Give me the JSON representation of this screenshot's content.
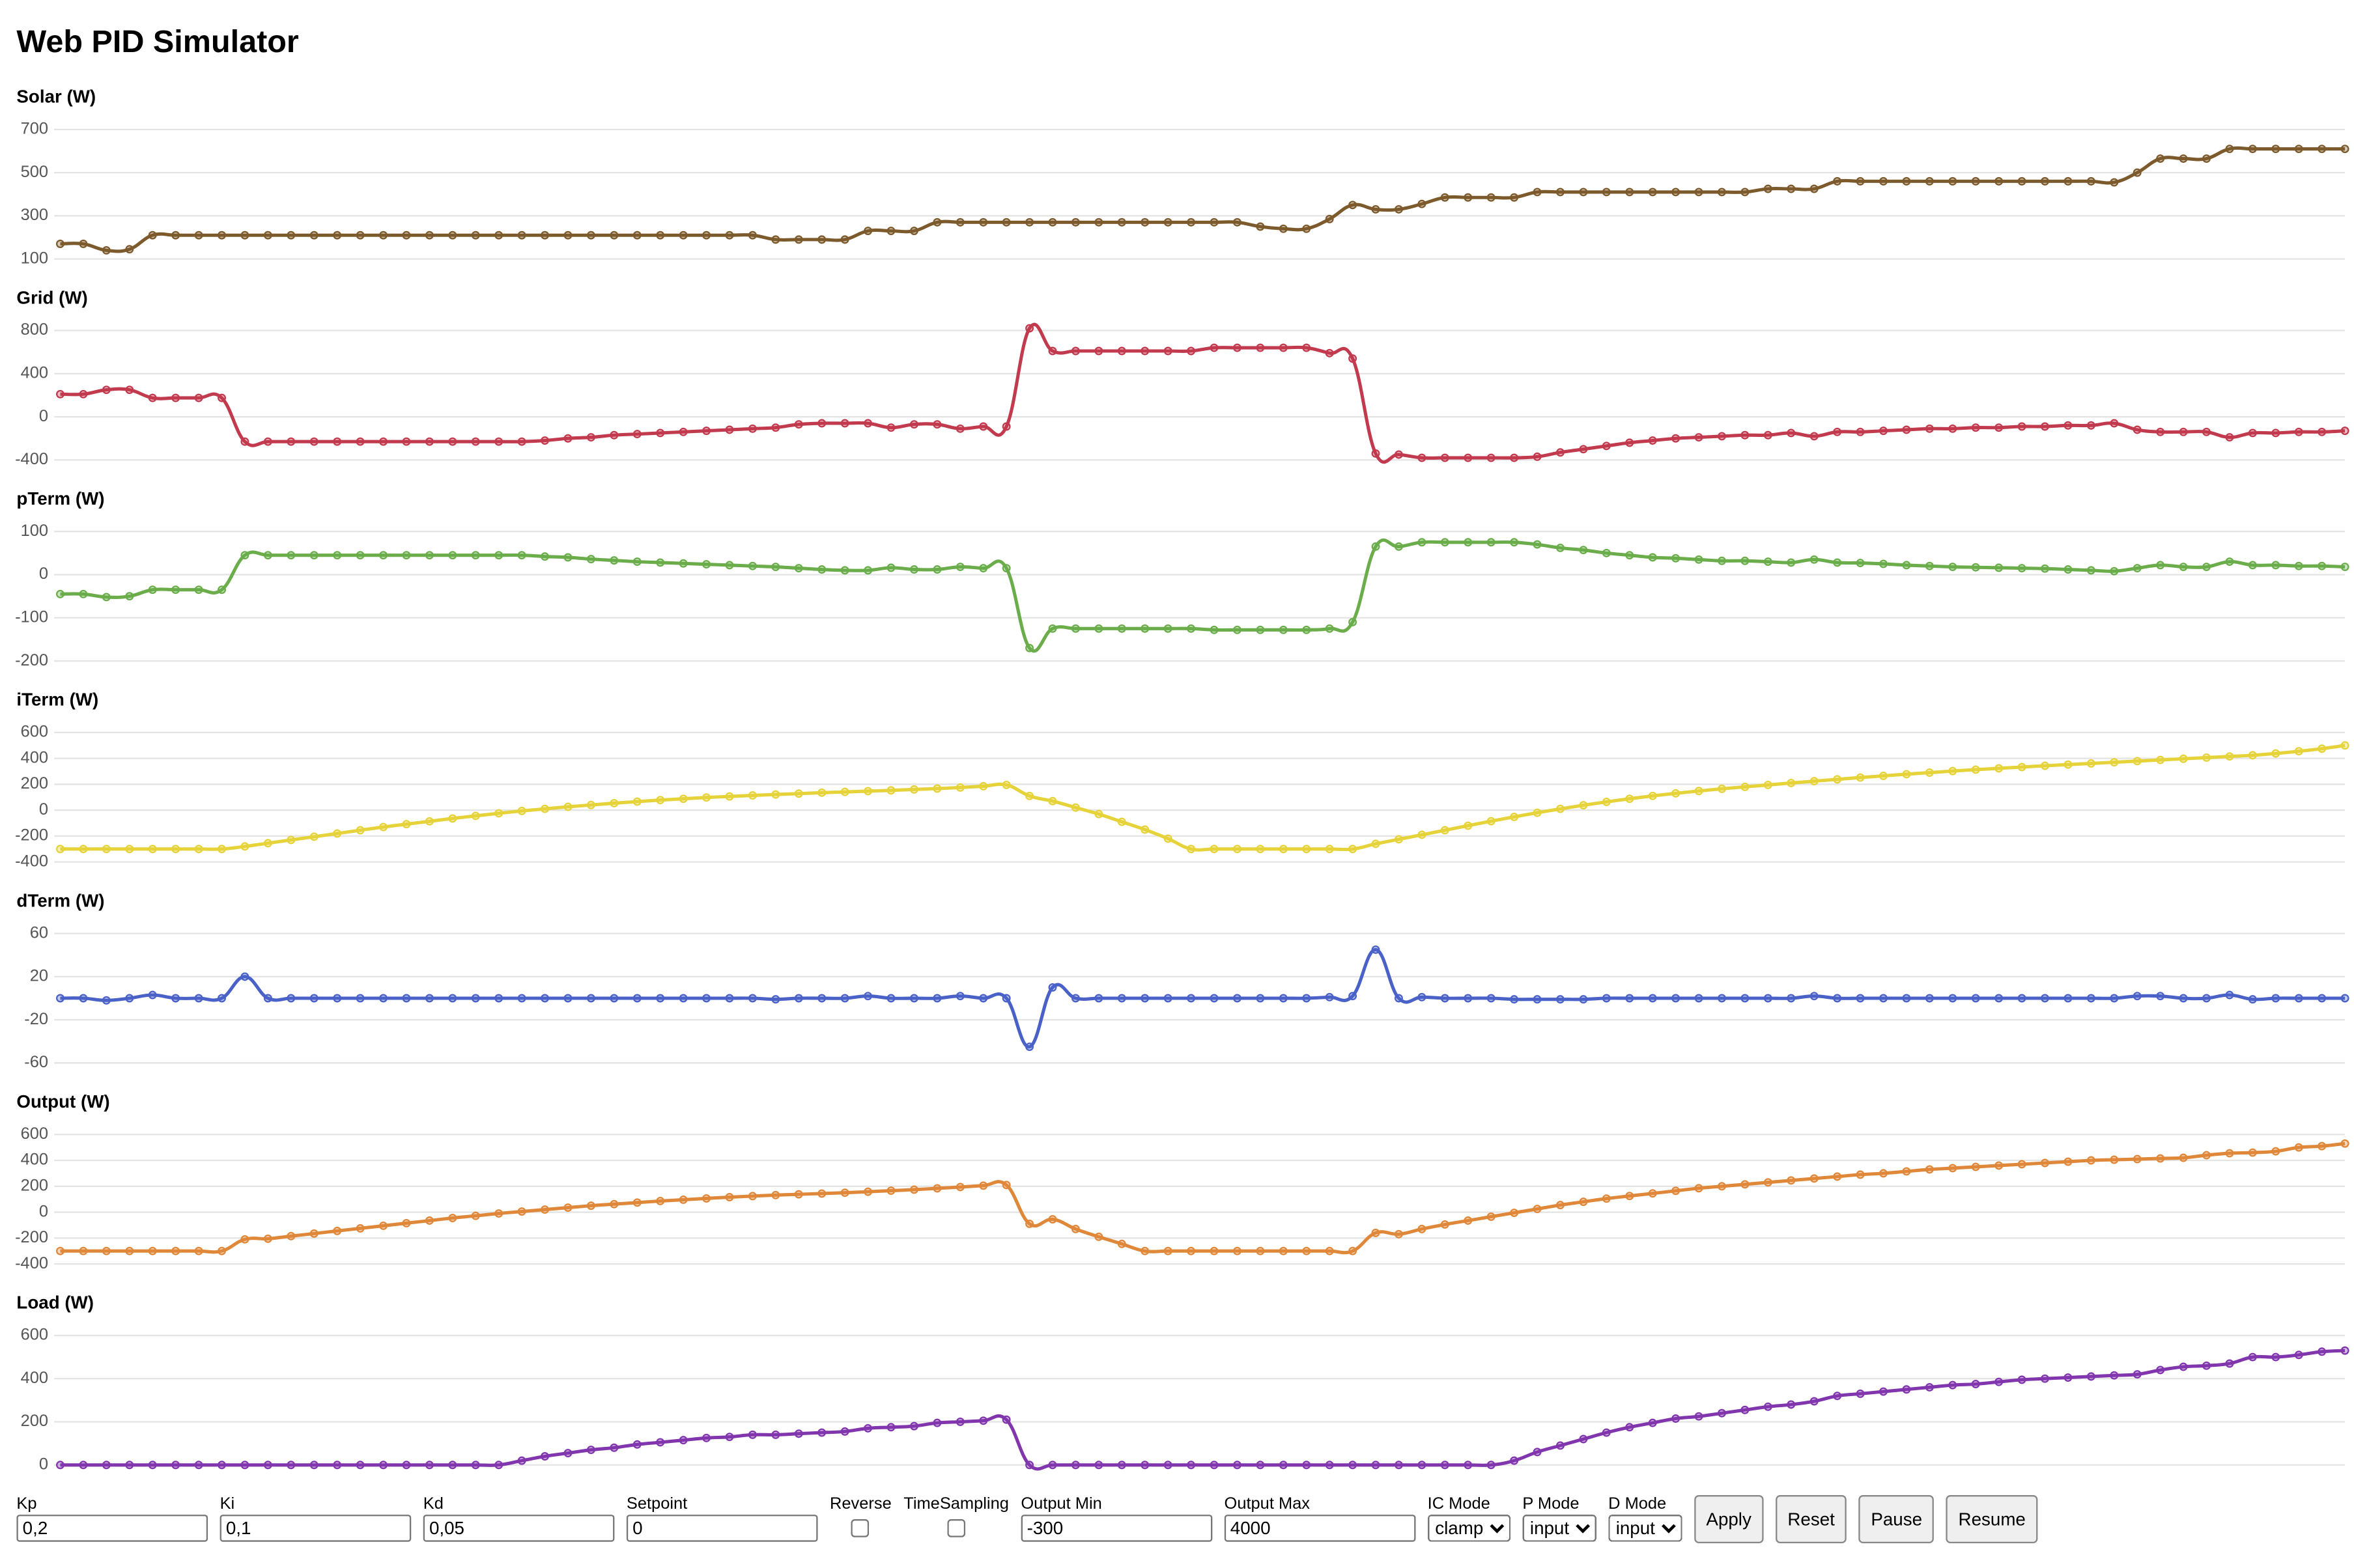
{
  "title": "Web PID Simulator",
  "chart_data": [
    {
      "type": "line",
      "title": "Solar (W)",
      "color": "#7d5a2c",
      "ylim": [
        100,
        700
      ],
      "yticks": [
        100,
        300,
        500,
        700
      ],
      "grid": true,
      "values": [
        170,
        170,
        140,
        145,
        210,
        210,
        210,
        210,
        210,
        210,
        210,
        210,
        210,
        210,
        210,
        210,
        210,
        210,
        210,
        210,
        210,
        210,
        210,
        210,
        210,
        210,
        210,
        210,
        210,
        210,
        210,
        190,
        190,
        190,
        190,
        230,
        230,
        230,
        270,
        270,
        270,
        270,
        270,
        270,
        270,
        270,
        270,
        270,
        270,
        270,
        270,
        270,
        250,
        240,
        240,
        285,
        350,
        330,
        330,
        355,
        385,
        385,
        385,
        385,
        410,
        410,
        410,
        410,
        410,
        410,
        410,
        410,
        410,
        410,
        425,
        425,
        425,
        460,
        460,
        460,
        460,
        460,
        460,
        460,
        460,
        460,
        460,
        460,
        460,
        455,
        500,
        565,
        565,
        565,
        610,
        610,
        610,
        610,
        610,
        610
      ]
    },
    {
      "type": "line",
      "title": "Grid (W)",
      "color": "#c23a4e",
      "ylim": [
        -400,
        800
      ],
      "yticks": [
        -400,
        0,
        400,
        800
      ],
      "grid": true,
      "values": [
        210,
        210,
        250,
        250,
        175,
        175,
        175,
        175,
        -230,
        -230,
        -230,
        -230,
        -230,
        -230,
        -230,
        -230,
        -230,
        -230,
        -230,
        -230,
        -230,
        -220,
        -200,
        -190,
        -170,
        -160,
        -150,
        -140,
        -130,
        -120,
        -110,
        -100,
        -70,
        -60,
        -60,
        -60,
        -100,
        -70,
        -70,
        -110,
        -90,
        -90,
        820,
        610,
        610,
        610,
        610,
        610,
        610,
        610,
        640,
        640,
        640,
        640,
        640,
        590,
        540,
        -340,
        -350,
        -380,
        -380,
        -380,
        -380,
        -380,
        -370,
        -330,
        -300,
        -270,
        -240,
        -220,
        -200,
        -190,
        -180,
        -170,
        -170,
        -150,
        -180,
        -140,
        -140,
        -130,
        -120,
        -110,
        -110,
        -100,
        -100,
        -90,
        -90,
        -80,
        -80,
        -60,
        -120,
        -140,
        -140,
        -140,
        -190,
        -150,
        -150,
        -140,
        -140,
        -130
      ]
    },
    {
      "type": "line",
      "title": "pTerm (W)",
      "color": "#6aad4a",
      "ylim": [
        -200,
        100
      ],
      "yticks": [
        -200,
        -100,
        0,
        100
      ],
      "grid": true,
      "values": [
        -45,
        -45,
        -52,
        -50,
        -35,
        -35,
        -35,
        -35,
        45,
        45,
        45,
        45,
        45,
        45,
        45,
        45,
        45,
        45,
        45,
        45,
        45,
        42,
        40,
        36,
        33,
        30,
        28,
        26,
        24,
        22,
        20,
        18,
        15,
        12,
        10,
        10,
        16,
        12,
        12,
        18,
        15,
        15,
        -170,
        -125,
        -125,
        -125,
        -125,
        -125,
        -125,
        -125,
        -128,
        -128,
        -128,
        -128,
        -128,
        -125,
        -110,
        65,
        65,
        75,
        75,
        75,
        75,
        75,
        70,
        62,
        57,
        50,
        45,
        40,
        38,
        35,
        32,
        32,
        30,
        28,
        35,
        28,
        27,
        25,
        22,
        20,
        18,
        17,
        16,
        15,
        14,
        12,
        10,
        8,
        15,
        22,
        18,
        18,
        30,
        22,
        22,
        20,
        20,
        18
      ]
    },
    {
      "type": "line",
      "title": "iTerm (W)",
      "color": "#e6d33a",
      "ylim": [
        -400,
        600
      ],
      "yticks": [
        -400,
        -200,
        0,
        200,
        400,
        600
      ],
      "grid": true,
      "values": [
        -300,
        -300,
        -300,
        -300,
        -300,
        -300,
        -300,
        -300,
        -280,
        -255,
        -230,
        -205,
        -180,
        -155,
        -130,
        -108,
        -86,
        -64,
        -44,
        -24,
        -6,
        10,
        26,
        40,
        54,
        66,
        78,
        88,
        98,
        106,
        114,
        121,
        128,
        135,
        141,
        147,
        153,
        160,
        167,
        175,
        185,
        195,
        110,
        70,
        20,
        -30,
        -90,
        -150,
        -220,
        -300,
        -300,
        -300,
        -300,
        -300,
        -300,
        -300,
        -300,
        -260,
        -225,
        -190,
        -155,
        -120,
        -85,
        -52,
        -20,
        10,
        38,
        64,
        88,
        110,
        130,
        148,
        165,
        180,
        195,
        210,
        224,
        238,
        252,
        265,
        278,
        290,
        302,
        313,
        323,
        333,
        343,
        352,
        361,
        370,
        379,
        388,
        397,
        406,
        415,
        424,
        438,
        455,
        475,
        500
      ]
    },
    {
      "type": "line",
      "title": "dTerm (W)",
      "color": "#4a62c8",
      "ylim": [
        -60,
        60
      ],
      "yticks": [
        -60,
        -20,
        20,
        60
      ],
      "grid": true,
      "values": [
        0,
        0,
        -2,
        0,
        3,
        0,
        0,
        0,
        20,
        0,
        0,
        0,
        0,
        0,
        0,
        0,
        0,
        0,
        0,
        0,
        0,
        0,
        0,
        0,
        0,
        0,
        0,
        0,
        0,
        0,
        0,
        -1,
        0,
        0,
        0,
        2,
        0,
        0,
        0,
        2,
        0,
        0,
        -45,
        10,
        0,
        0,
        0,
        0,
        0,
        0,
        0,
        0,
        0,
        0,
        0,
        1,
        2,
        45,
        0,
        1,
        0,
        0,
        0,
        -1,
        -1,
        -1,
        -1,
        0,
        0,
        0,
        0,
        0,
        0,
        0,
        0,
        0,
        2,
        0,
        0,
        0,
        0,
        0,
        0,
        0,
        0,
        0,
        0,
        0,
        0,
        0,
        2,
        2,
        0,
        0,
        3,
        -1,
        0,
        0,
        0,
        0
      ]
    },
    {
      "type": "line",
      "title": "Output (W)",
      "color": "#e0883a",
      "ylim": [
        -400,
        600
      ],
      "yticks": [
        -400,
        -200,
        0,
        200,
        400,
        600
      ],
      "grid": true,
      "values": [
        -300,
        -300,
        -300,
        -300,
        -300,
        -300,
        -300,
        -300,
        -210,
        -205,
        -185,
        -165,
        -145,
        -125,
        -105,
        -85,
        -65,
        -45,
        -28,
        -10,
        5,
        20,
        35,
        50,
        62,
        74,
        86,
        96,
        106,
        116,
        124,
        132,
        138,
        144,
        150,
        158,
        166,
        174,
        184,
        194,
        205,
        210,
        -90,
        -55,
        -130,
        -190,
        -245,
        -300,
        -300,
        -300,
        -300,
        -300,
        -300,
        -300,
        -300,
        -300,
        -300,
        -160,
        -170,
        -130,
        -95,
        -65,
        -35,
        -5,
        25,
        55,
        80,
        105,
        125,
        145,
        165,
        185,
        200,
        215,
        230,
        245,
        260,
        275,
        290,
        300,
        315,
        330,
        340,
        350,
        360,
        370,
        380,
        390,
        400,
        405,
        410,
        415,
        420,
        440,
        455,
        460,
        470,
        500,
        510,
        530
      ]
    },
    {
      "type": "line",
      "title": "Load (W)",
      "color": "#8236ad",
      "ylim": [
        0,
        600
      ],
      "yticks": [
        0,
        200,
        400,
        600
      ],
      "grid": true,
      "values": [
        0,
        0,
        0,
        0,
        0,
        0,
        0,
        0,
        0,
        0,
        0,
        0,
        0,
        0,
        0,
        0,
        0,
        0,
        0,
        0,
        20,
        40,
        55,
        70,
        80,
        95,
        105,
        115,
        125,
        130,
        140,
        140,
        145,
        150,
        155,
        170,
        175,
        180,
        195,
        200,
        205,
        210,
        0,
        0,
        0,
        0,
        0,
        0,
        0,
        0,
        0,
        0,
        0,
        0,
        0,
        0,
        0,
        0,
        0,
        0,
        0,
        0,
        0,
        20,
        60,
        90,
        120,
        150,
        175,
        195,
        215,
        225,
        240,
        255,
        270,
        280,
        295,
        320,
        330,
        340,
        350,
        360,
        370,
        375,
        385,
        395,
        400,
        405,
        410,
        415,
        420,
        440,
        455,
        460,
        470,
        500,
        500,
        510,
        525,
        530
      ]
    }
  ],
  "controls": [
    {
      "label": "Kp",
      "kind": "text",
      "value": "0,2"
    },
    {
      "label": "Ki",
      "kind": "text",
      "value": "0,1"
    },
    {
      "label": "Kd",
      "kind": "text",
      "value": "0,05"
    },
    {
      "label": "Setpoint",
      "kind": "text",
      "value": "0"
    },
    {
      "label": "Reverse",
      "kind": "checkbox"
    },
    {
      "label": "TimeSampling",
      "kind": "checkbox"
    },
    {
      "label": "Output Min",
      "kind": "text",
      "value": "-300"
    },
    {
      "label": "Output Max",
      "kind": "text",
      "value": "4000"
    },
    {
      "label": "IC Mode",
      "kind": "select",
      "value": "clamp"
    },
    {
      "label": "P Mode",
      "kind": "select",
      "value": "input"
    },
    {
      "label": "D Mode",
      "kind": "select",
      "value": "input"
    },
    {
      "label": "Apply",
      "kind": "button"
    },
    {
      "label": "Reset",
      "kind": "button"
    },
    {
      "label": "Pause",
      "kind": "button"
    },
    {
      "label": "Resume",
      "kind": "button"
    }
  ]
}
